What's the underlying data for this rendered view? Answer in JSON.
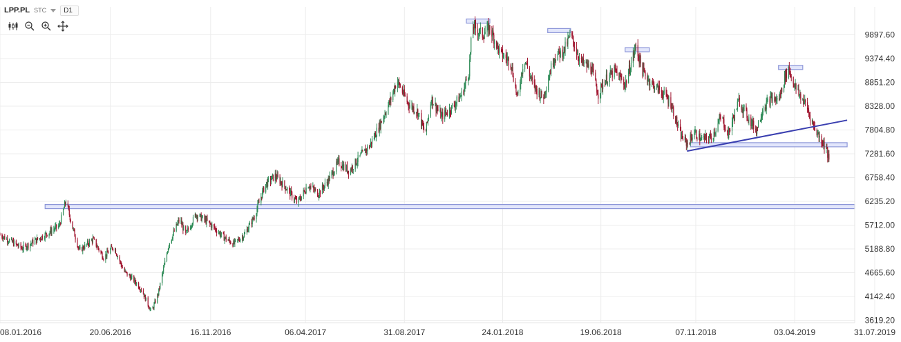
{
  "header": {
    "symbol": "LPP.PL",
    "type_label": "STC",
    "timeframe": "D1"
  },
  "toolbar": {
    "icons": [
      "candles-icon",
      "zoom-out-icon",
      "zoom-in-icon",
      "pan-icon"
    ]
  },
  "colors": {
    "up": "#2e8b57",
    "down": "#a0152f",
    "grid": "#ececec",
    "level_fill": "#dfe3fb",
    "level_stroke": "#8c96d8",
    "trendline": "#3a3fb0"
  },
  "chart_data": {
    "type": "candlestick",
    "symbol": "LPP.PL",
    "timeframe": "D1",
    "y_ticks": [
      "9897.60",
      "9374.40",
      "8851.20",
      "8328.00",
      "7804.80",
      "7281.60",
      "6758.40",
      "6235.20",
      "5712.00",
      "5188.80",
      "4665.60",
      "4142.40",
      "3619.20"
    ],
    "y_tick_values": [
      9897.6,
      9374.4,
      8851.2,
      8328.0,
      7804.8,
      7281.6,
      6758.4,
      6235.2,
      5712.0,
      5188.8,
      4665.6,
      4142.4,
      3619.2
    ],
    "ylim": [
      3619.2,
      10350
    ],
    "x_ticks": [
      "08.01.2016",
      "20.06.2016",
      "16.11.2016",
      "06.04.2017",
      "31.08.2017",
      "24.01.2018",
      "19.06.2018",
      "07.11.2018",
      "03.04.2019",
      "31.07.2019"
    ],
    "xlim": [
      "2016-01-08",
      "2019-07-31"
    ],
    "price_path": [
      [
        "2016-01-08",
        5500
      ],
      [
        "2016-02-10",
        5200
      ],
      [
        "2016-03-15",
        5500
      ],
      [
        "2016-04-05",
        5700
      ],
      [
        "2016-04-15",
        6250
      ],
      [
        "2016-04-25",
        5650
      ],
      [
        "2016-05-05",
        5150
      ],
      [
        "2016-05-25",
        5400
      ],
      [
        "2016-06-10",
        5000
      ],
      [
        "2016-06-25",
        5250
      ],
      [
        "2016-07-10",
        4700
      ],
      [
        "2016-07-25",
        4500
      ],
      [
        "2016-08-05",
        4300
      ],
      [
        "2016-08-20",
        3800
      ],
      [
        "2016-08-30",
        4200
      ],
      [
        "2016-09-15",
        5300
      ],
      [
        "2016-10-01",
        5850
      ],
      [
        "2016-10-10",
        5500
      ],
      [
        "2016-10-25",
        5950
      ],
      [
        "2016-11-10",
        5800
      ],
      [
        "2016-11-25",
        5600
      ],
      [
        "2016-12-05",
        5450
      ],
      [
        "2016-12-20",
        5300
      ],
      [
        "2017-01-05",
        5500
      ],
      [
        "2017-01-20",
        5900
      ],
      [
        "2017-02-05",
        6600
      ],
      [
        "2017-02-20",
        6800
      ],
      [
        "2017-03-10",
        6500
      ],
      [
        "2017-03-25",
        6200
      ],
      [
        "2017-04-10",
        6600
      ],
      [
        "2017-04-25",
        6400
      ],
      [
        "2017-05-10",
        6700
      ],
      [
        "2017-05-25",
        7100
      ],
      [
        "2017-06-10",
        6900
      ],
      [
        "2017-06-25",
        7200
      ],
      [
        "2017-07-10",
        7450
      ],
      [
        "2017-07-25",
        7900
      ],
      [
        "2017-08-10",
        8450
      ],
      [
        "2017-08-20",
        8900
      ],
      [
        "2017-09-05",
        8400
      ],
      [
        "2017-09-20",
        8200
      ],
      [
        "2017-10-01",
        7700
      ],
      [
        "2017-10-10",
        8500
      ],
      [
        "2017-10-25",
        8100
      ],
      [
        "2017-11-10",
        8300
      ],
      [
        "2017-11-25",
        8600
      ],
      [
        "2017-12-05",
        9100
      ],
      [
        "2017-12-10",
        10100
      ],
      [
        "2017-12-25",
        9900
      ],
      [
        "2018-01-05",
        10050
      ],
      [
        "2018-01-20",
        9500
      ],
      [
        "2018-02-05",
        9300
      ],
      [
        "2018-02-15",
        8500
      ],
      [
        "2018-02-25",
        9400
      ],
      [
        "2018-03-10",
        8800
      ],
      [
        "2018-03-25",
        8500
      ],
      [
        "2018-04-10",
        9400
      ],
      [
        "2018-04-25",
        9550
      ],
      [
        "2018-05-05",
        9900
      ],
      [
        "2018-05-20",
        9300
      ],
      [
        "2018-06-05",
        9150
      ],
      [
        "2018-06-15",
        8600
      ],
      [
        "2018-06-25",
        8900
      ],
      [
        "2018-07-10",
        9100
      ],
      [
        "2018-07-25",
        8800
      ],
      [
        "2018-08-10",
        9650
      ],
      [
        "2018-08-20",
        9100
      ],
      [
        "2018-09-01",
        8850
      ],
      [
        "2018-09-20",
        8600
      ],
      [
        "2018-10-01",
        8400
      ],
      [
        "2018-10-15",
        7700
      ],
      [
        "2018-10-25",
        7500
      ],
      [
        "2018-11-05",
        7750
      ],
      [
        "2018-11-15",
        7600
      ],
      [
        "2018-12-01",
        7650
      ],
      [
        "2018-12-15",
        8100
      ],
      [
        "2018-12-25",
        7700
      ],
      [
        "2019-01-10",
        8450
      ],
      [
        "2019-01-25",
        8050
      ],
      [
        "2019-02-05",
        7800
      ],
      [
        "2019-02-15",
        8300
      ],
      [
        "2019-02-28",
        8500
      ],
      [
        "2019-03-10",
        8450
      ],
      [
        "2019-03-20",
        9000
      ],
      [
        "2019-03-25",
        9150
      ],
      [
        "2019-04-05",
        8700
      ],
      [
        "2019-04-20",
        8350
      ],
      [
        "2019-05-01",
        7900
      ],
      [
        "2019-05-10",
        7650
      ],
      [
        "2019-05-20",
        7400
      ],
      [
        "2019-05-25",
        7050
      ]
    ],
    "levels": [
      {
        "price": 6120,
        "from": "2016-03-15",
        "to": "2019-07-31"
      },
      {
        "price": 7480,
        "from": "2018-10-30",
        "to": "2019-06-20"
      },
      {
        "price": 10200,
        "from": "2017-12-01",
        "to": "2018-01-05"
      },
      {
        "price": 9990,
        "from": "2018-04-01",
        "to": "2018-05-05"
      },
      {
        "price": 9570,
        "from": "2018-07-25",
        "to": "2018-08-30"
      },
      {
        "price": 9180,
        "from": "2019-03-10",
        "to": "2019-04-15"
      }
    ],
    "trendline": [
      [
        "2018-10-25",
        7340
      ],
      [
        "2019-06-20",
        8020
      ]
    ]
  }
}
